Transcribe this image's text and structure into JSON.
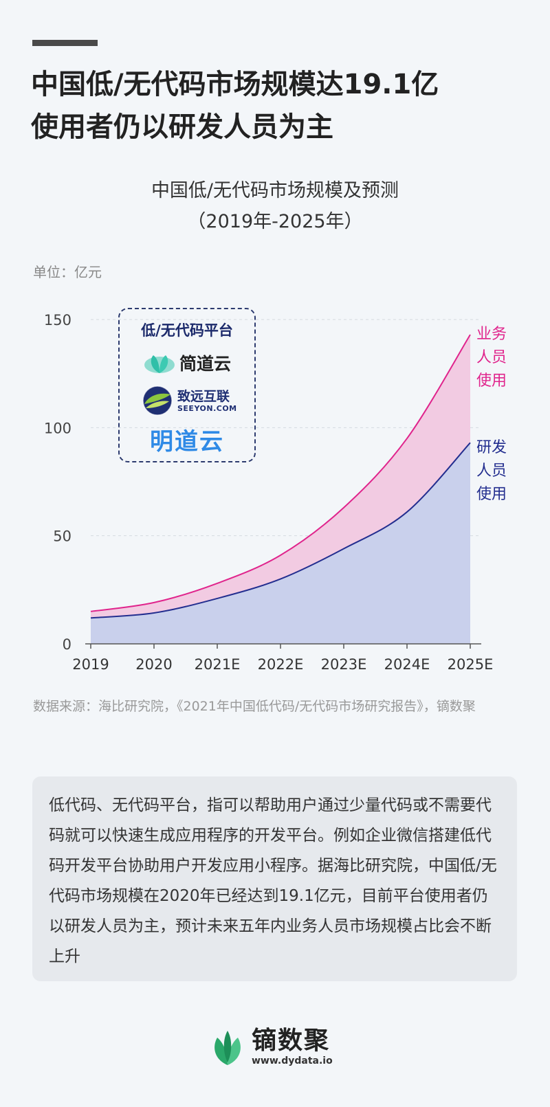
{
  "headline": {
    "line1": "中国低/无代码市场规模达19.1亿",
    "line2": "使用者仍以研发人员为主"
  },
  "chart_data": {
    "type": "area",
    "title": "中国低/无代码市场规模及预测",
    "subtitle": "（2019年-2025年）",
    "unit_label": "单位：亿元",
    "categories": [
      "2019",
      "2020",
      "2021E",
      "2022E",
      "2023E",
      "2024E",
      "2025E"
    ],
    "ylim": [
      0,
      150
    ],
    "yticks": [
      0,
      50,
      100,
      150
    ],
    "grid": true,
    "stacked": true,
    "series": [
      {
        "name": "研发人员使用",
        "label_lines": [
          "研发",
          "人员",
          "使用"
        ],
        "color": "#232e8f",
        "fill": "#c9d0ec",
        "values": [
          12,
          14.3,
          21,
          30,
          44,
          61,
          93
        ]
      },
      {
        "name": "业务人员使用",
        "label_lines": [
          "业务",
          "人员",
          "使用"
        ],
        "color": "#e0248c",
        "fill": "#f2cbe2",
        "values": [
          3,
          4.8,
          7,
          11,
          19,
          34,
          50
        ]
      }
    ]
  },
  "platform_box": {
    "title": "低/无代码平台",
    "brands": [
      {
        "name": "简道云",
        "icon": "leaf-cloud-icon"
      },
      {
        "name_cn": "致远互联",
        "name_en": "SEEYON.COM",
        "icon": "seeyon-globe-icon"
      },
      {
        "name": "明道云"
      }
    ]
  },
  "source": "数据来源：海比研究院，《2021年中国低代码/无代码市场研究报告》，镝数聚",
  "description": "低代码、无代码平台，指可以帮助用户通过少量代码或不需要代码就可以快速生成应用程序的开发平台。例如企业微信搭建低代码开发平台协助用户开发应用小程序。据海比研究院，中国低/无代码市场规模在2020年已经达到19.1亿元，目前平台使用者仍以研发人员为主，预计未来五年内业务人员市场规模占比会不断上升",
  "footer": {
    "brand": "镝数聚",
    "url": "www.dydata.io",
    "icon": "leaf-logo-icon"
  },
  "colors": {
    "accent_blue": "#232e8f",
    "accent_pink": "#e0248c",
    "box_border": "#2c3a6e"
  }
}
